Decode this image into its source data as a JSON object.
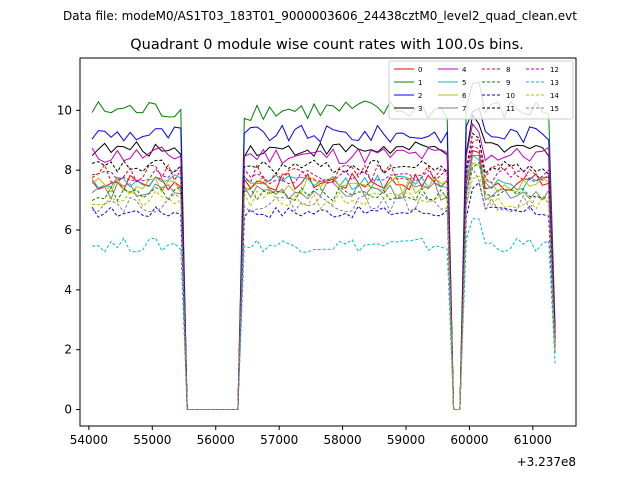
{
  "chart_data": {
    "type": "line",
    "suptitle": "Data file: modeM0/AS1T03_183T01_9000003606_24438cztM0_level2_quad_clean.evt",
    "title": "Quadrant 0 module wise count rates with 100.0s bins.",
    "xlabel": "",
    "ylabel": "",
    "x_offset_label": "+3.237e8",
    "xlim": [
      53860,
      61680
    ],
    "ylim": [
      -0.55,
      11.75
    ],
    "x_ticks": [
      54000,
      55000,
      56000,
      57000,
      58000,
      59000,
      60000,
      61000
    ],
    "x_tick_labels": [
      "54000",
      "55000",
      "56000",
      "57000",
      "58000",
      "59000",
      "60000",
      "61000"
    ],
    "y_ticks": [
      0,
      2,
      4,
      6,
      8,
      10
    ],
    "y_tick_labels": [
      "0",
      "2",
      "4",
      "6",
      "8",
      "10"
    ],
    "legend_position": "top-right",
    "gaps": [
      [
        55550,
        56350
      ],
      [
        59700,
        59900
      ]
    ],
    "x_start": 54050,
    "x_end": 61350,
    "x_step": 100,
    "series": [
      {
        "name": "0",
        "color": "#ff0000",
        "dashed": false,
        "level": 7.6,
        "noise": 0.3
      },
      {
        "name": "1",
        "color": "#008000",
        "dashed": false,
        "level": 10.0,
        "noise": 0.35
      },
      {
        "name": "2",
        "color": "#0000ff",
        "dashed": false,
        "level": 9.2,
        "noise": 0.3
      },
      {
        "name": "3",
        "color": "#000000",
        "dashed": false,
        "level": 8.7,
        "noise": 0.25
      },
      {
        "name": "4",
        "color": "#bf00bf",
        "dashed": false,
        "level": 8.5,
        "noise": 0.3
      },
      {
        "name": "5",
        "color": "#00bfbf",
        "dashed": false,
        "level": 7.6,
        "noise": 0.25
      },
      {
        "name": "6",
        "color": "#bfbf00",
        "dashed": false,
        "level": 7.5,
        "noise": 0.3
      },
      {
        "name": "7",
        "color": "#808080",
        "dashed": false,
        "level": 7.3,
        "noise": 0.3
      },
      {
        "name": "8",
        "color": "#ff0000",
        "dashed": true,
        "level": 7.9,
        "noise": 0.3
      },
      {
        "name": "9",
        "color": "#008000",
        "dashed": true,
        "level": 7.2,
        "noise": 0.25
      },
      {
        "name": "10",
        "color": "#0000ff",
        "dashed": true,
        "level": 6.6,
        "noise": 0.2
      },
      {
        "name": "11",
        "color": "#000000",
        "dashed": true,
        "level": 8.1,
        "noise": 0.25
      },
      {
        "name": "12",
        "color": "#bf00bf",
        "dashed": true,
        "level": 7.8,
        "noise": 0.25
      },
      {
        "name": "13",
        "color": "#00bfbf",
        "dashed": true,
        "level": 5.5,
        "noise": 0.25
      },
      {
        "name": "14",
        "color": "#bfbf00",
        "dashed": true,
        "level": 7.0,
        "noise": 0.3
      },
      {
        "name": "15",
        "color": "#808080",
        "dashed": true,
        "level": 6.9,
        "noise": 0.3
      }
    ]
  }
}
